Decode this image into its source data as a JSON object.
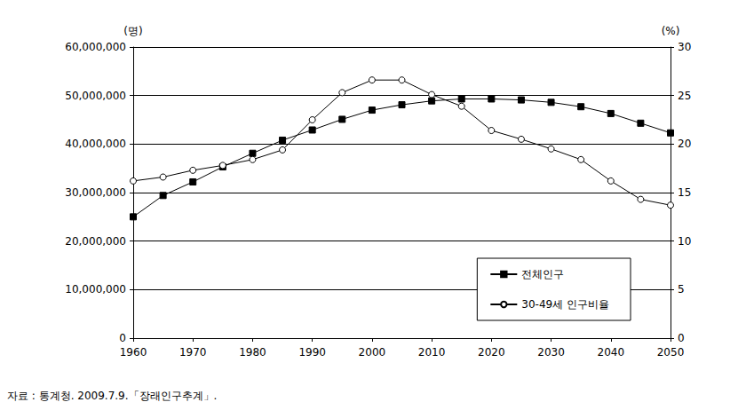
{
  "chart_data": {
    "type": "line",
    "y_label": "(명)",
    "y2_label": "(%)",
    "note": "자료 : 통계청. 2009.7.9.「장래인구추계」.",
    "x": [
      1960,
      1965,
      1970,
      1975,
      1980,
      1985,
      1990,
      1995,
      2000,
      2005,
      2010,
      2015,
      2020,
      2025,
      2030,
      2035,
      2040,
      2045,
      2050
    ],
    "xlim": [
      1960,
      2050
    ],
    "xticks": [
      1960,
      1970,
      1980,
      1990,
      2000,
      2010,
      2020,
      2030,
      2040,
      2050
    ],
    "ylim": [
      0,
      60000000
    ],
    "yticks": [
      0,
      {
        "value": 10000000,
        "label": "10,000,000"
      },
      {
        "value": 20000000,
        "label": "20,000,000"
      },
      {
        "value": 30000000,
        "label": "30,000,000"
      },
      {
        "value": 40000000,
        "label": "40,000,000"
      },
      {
        "value": 50000000,
        "label": "50,000,000"
      },
      {
        "value": 60000000,
        "label": "60,000,000"
      }
    ],
    "y2lim": [
      0,
      30
    ],
    "y2ticks": [
      0,
      5,
      10,
      15,
      20,
      25,
      30
    ],
    "grid": true,
    "legend": "lower right",
    "series": [
      {
        "name": "전체인구",
        "color": "#000000",
        "marker": "square",
        "values": [
          25000000,
          29400000,
          32200000,
          35300000,
          38100000,
          40800000,
          42900000,
          45100000,
          47000000,
          48100000,
          48900000,
          49300000,
          49300000,
          49100000,
          48600000,
          47700000,
          46300000,
          44300000,
          42300000
        ]
      },
      {
        "name": "30-49세 인구비율",
        "color": "#000000",
        "marker": "open_circle",
        "axis": "y2",
        "values": [
          16.2,
          16.6,
          17.3,
          17.8,
          18.4,
          19.4,
          22.5,
          25.3,
          26.6,
          26.6,
          25.1,
          23.9,
          21.4,
          20.5,
          19.5,
          18.4,
          16.2,
          14.3,
          13.7
        ]
      }
    ]
  }
}
